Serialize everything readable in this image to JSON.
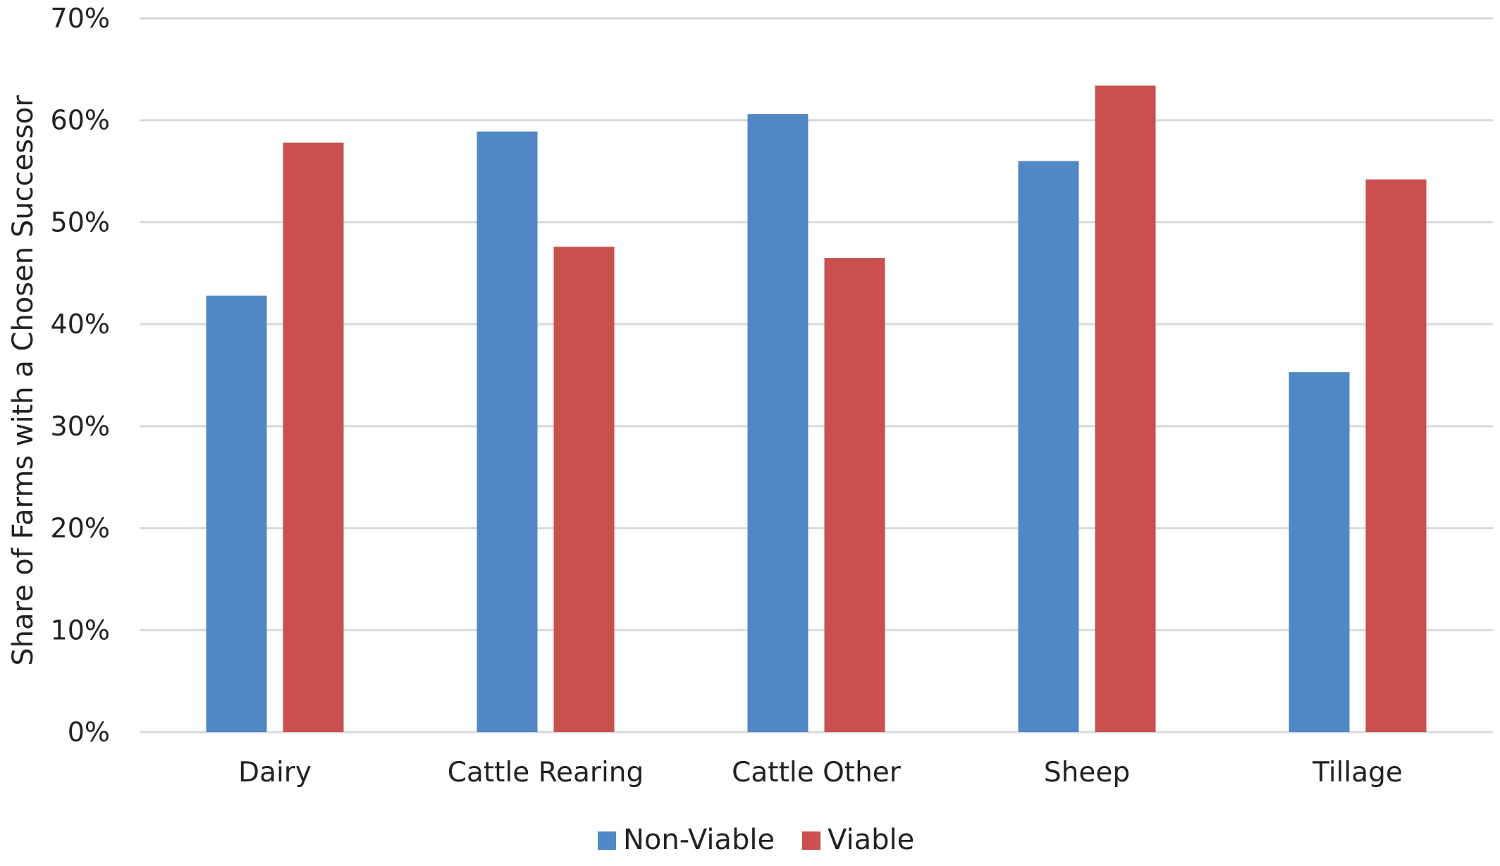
{
  "chart_data": {
    "type": "bar",
    "categories": [
      "Dairy",
      "Cattle Rearing",
      "Cattle Other",
      "Sheep",
      "Tillage"
    ],
    "series": [
      {
        "name": "Non-Viable",
        "color": "#5287C5",
        "values": [
          42.8,
          58.9,
          60.6,
          56.0,
          35.3
        ]
      },
      {
        "name": "Viable",
        "color": "#C9504F",
        "values": [
          57.8,
          47.6,
          46.5,
          63.4,
          54.2
        ]
      }
    ],
    "title": "",
    "xlabel": "",
    "ylabel": "Share of Farms with a Chosen Successor",
    "ylim": [
      0,
      70
    ],
    "ytick_values": [
      0,
      10,
      20,
      30,
      40,
      50,
      60,
      70
    ],
    "ytick_labels": [
      "0%",
      "10%",
      "20%",
      "30%",
      "40%",
      "50%",
      "60%",
      "70%"
    ],
    "grid": true,
    "legend_position": "bottom-center"
  }
}
